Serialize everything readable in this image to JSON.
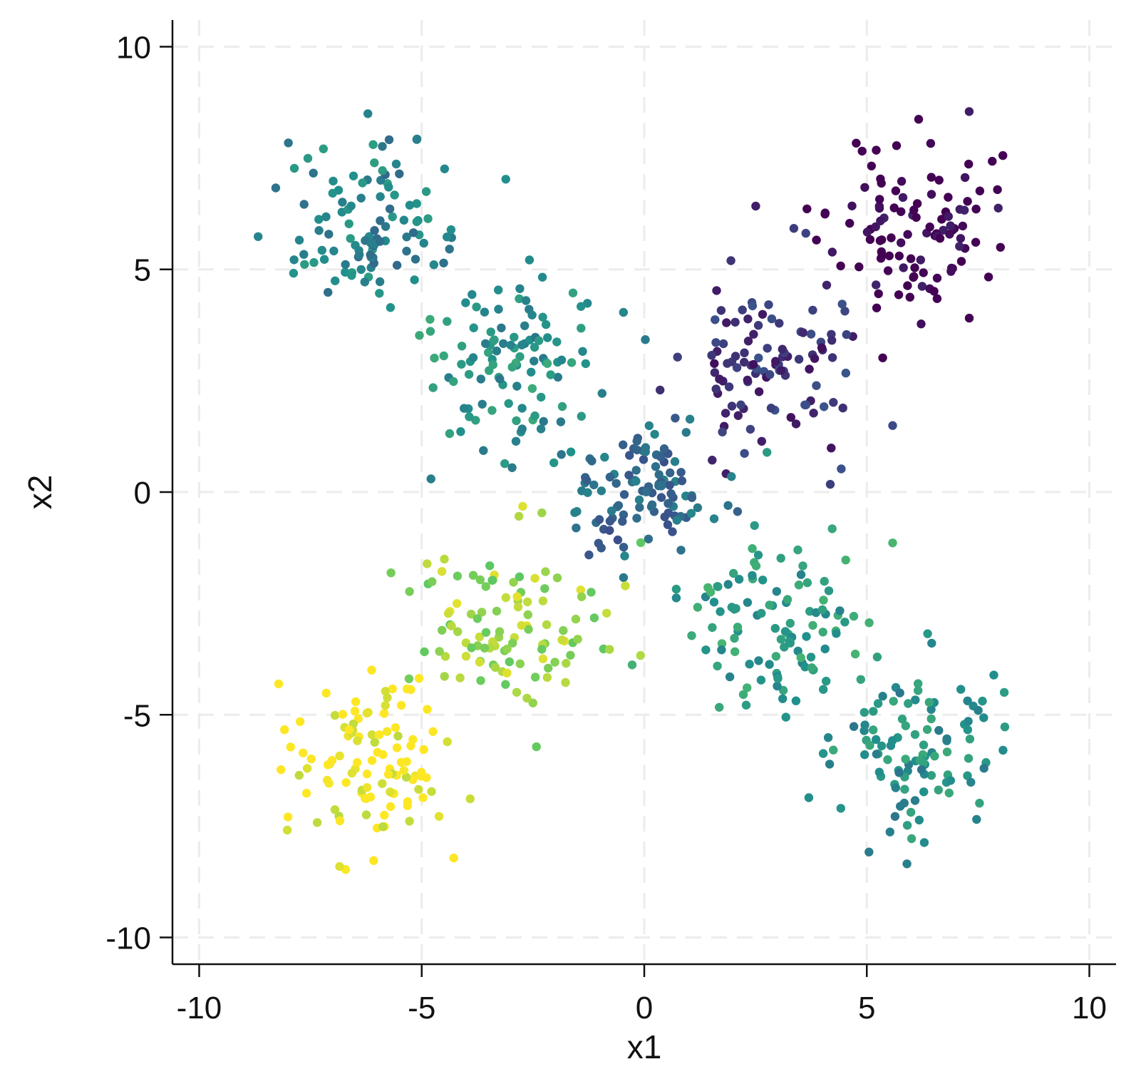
{
  "chart_data": {
    "type": "scatter",
    "title": "",
    "xlabel": "x1",
    "ylabel": "x2",
    "xlim": [
      -10.6,
      10.6
    ],
    "ylim": [
      -10.6,
      10.6
    ],
    "xticks": [
      -10,
      -5,
      0,
      5,
      10
    ],
    "yticks": [
      -10,
      -5,
      0,
      5,
      10
    ],
    "xtick_labels": [
      "-10",
      "-5",
      "0",
      "5",
      "10"
    ],
    "ytick_labels": [
      "-10",
      "-5",
      "0",
      "5",
      "10"
    ],
    "grid": true,
    "legend": "none",
    "colormap": [
      "#440154",
      "#3b528b",
      "#21918c",
      "#5ec962",
      "#fde725"
    ],
    "clusters": [
      {
        "center": [
          6.0,
          6.0
        ],
        "spread": 1.0,
        "count": 110,
        "color_index": 0.0
      },
      {
        "center": [
          3.0,
          3.0
        ],
        "spread": 1.0,
        "count": 110,
        "color_index": 0.15
      },
      {
        "center": [
          0.0,
          0.0
        ],
        "spread": 0.8,
        "count": 110,
        "color_index": 0.35
      },
      {
        "center": [
          -3.0,
          3.0
        ],
        "spread": 1.0,
        "count": 110,
        "color_index": 0.5
      },
      {
        "center": [
          -6.0,
          6.0
        ],
        "spread": 1.0,
        "count": 110,
        "color_index": 0.45
      },
      {
        "center": [
          3.0,
          -3.0
        ],
        "spread": 1.0,
        "count": 110,
        "color_index": 0.55
      },
      {
        "center": [
          6.0,
          -6.0
        ],
        "spread": 1.0,
        "count": 110,
        "color_index": 0.5
      },
      {
        "center": [
          -3.0,
          -3.0
        ],
        "spread": 1.0,
        "count": 110,
        "color_index": 0.85
      },
      {
        "center": [
          -6.0,
          -6.0
        ],
        "spread": 1.0,
        "count": 110,
        "color_index": 1.0
      }
    ]
  }
}
